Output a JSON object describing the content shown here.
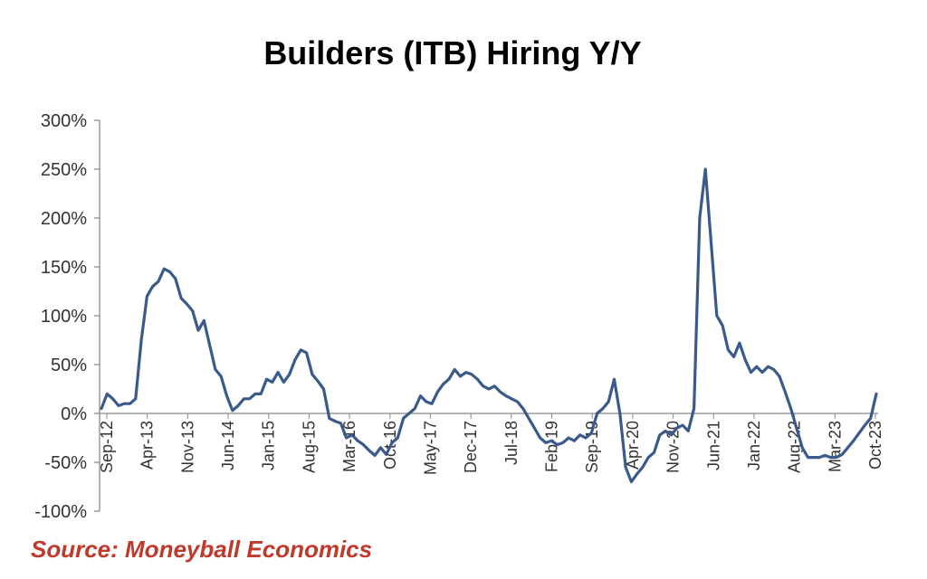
{
  "chart_data": {
    "type": "line",
    "title": "Builders (ITB) Hiring Y/Y",
    "source": "Source: Moneyball Economics",
    "xlabel": "",
    "ylabel": "",
    "ylim": [
      -100,
      300
    ],
    "y_ticks": [
      "300%",
      "250%",
      "200%",
      "150%",
      "100%",
      "50%",
      "0%",
      "-50%",
      "-100%"
    ],
    "y_tick_values": [
      300,
      250,
      200,
      150,
      100,
      50,
      0,
      -50,
      -100
    ],
    "x_ticks": [
      "Sep-12",
      "Apr-13",
      "Nov-13",
      "Jun-14",
      "Jan-15",
      "Aug-15",
      "Mar-16",
      "Oct-16",
      "May-17",
      "Dec-17",
      "Jul-18",
      "Feb-19",
      "Sep-19",
      "Apr-20",
      "Nov-20",
      "Jun-21",
      "Jan-22",
      "Aug-22",
      "Mar-23",
      "Oct-23"
    ],
    "line_color": "#3a5a8c",
    "grid": false,
    "series": [
      {
        "values": [
          5,
          20,
          15,
          8,
          10,
          10,
          15,
          75,
          120,
          130,
          135,
          148,
          145,
          138,
          118,
          112,
          105,
          85,
          95,
          70,
          45,
          38,
          18,
          3,
          8,
          15,
          15,
          20,
          20,
          35,
          32,
          42,
          32,
          40,
          55,
          65,
          62,
          40,
          33,
          25,
          -5,
          -8,
          -10,
          -25,
          -22,
          -28,
          -32,
          -38,
          -43,
          -35,
          -42,
          -30,
          -25,
          -5,
          0,
          5,
          18,
          12,
          10,
          22,
          30,
          35,
          45,
          38,
          42,
          40,
          35,
          28,
          25,
          28,
          22,
          18,
          15,
          12,
          5,
          -5,
          -15,
          -25,
          -30,
          -28,
          -32,
          -30,
          -25,
          -28,
          -22,
          -25,
          -20,
          0,
          5,
          12,
          35,
          0,
          -55,
          -70,
          -62,
          -55,
          -45,
          -40,
          -22,
          -18,
          -22,
          -15,
          -12,
          -18,
          5,
          200,
          250,
          175,
          100,
          90,
          65,
          58,
          72,
          55,
          42,
          48,
          42,
          48,
          45,
          38,
          22,
          5,
          -15,
          -35,
          -45,
          -45,
          -45,
          -43,
          -45,
          -45,
          -42,
          -35,
          -28,
          -20,
          -12,
          -5,
          20
        ]
      }
    ]
  }
}
